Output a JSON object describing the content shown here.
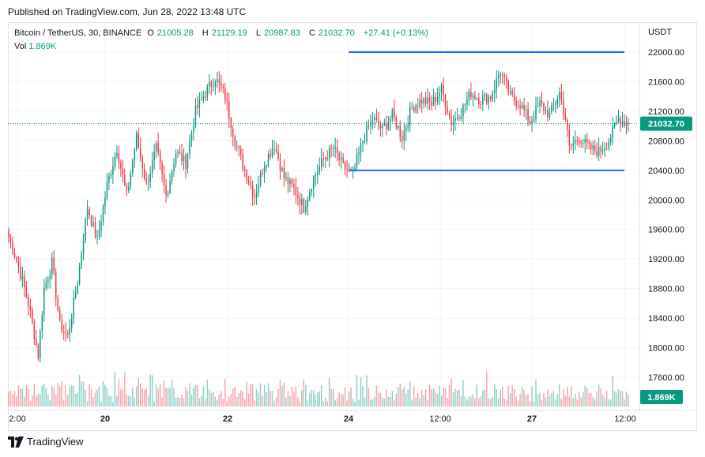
{
  "header": {
    "published": "Published on TradingView.com, Jun 28, 2022 13:48 UTC"
  },
  "legend": {
    "symbol": "Bitcoin / TetherUS, 30, BINANCE",
    "o_label": "O",
    "o_value": "21005.28",
    "h_label": "H",
    "h_value": "21129.19",
    "l_label": "L",
    "l_value": "20987.83",
    "c_label": "C",
    "c_value": "21032.70",
    "change": "+27.41 (+0.13%)",
    "vol_label": "Vol",
    "vol_value": "1.869K"
  },
  "footer": {
    "brand": "TradingView"
  },
  "colors": {
    "up": "#089981",
    "down": "#f23645",
    "level": "#2962ff",
    "last": "#089981"
  },
  "chart_data": {
    "type": "candlestick",
    "currency": "USDT",
    "y_ticks": [
      "22000.00",
      "21600.00",
      "21200.00",
      "20800.00",
      "20400.00",
      "20000.00",
      "19600.00",
      "19200.00",
      "18800.00",
      "18400.00",
      "18000.00",
      "17600.00"
    ],
    "x_ticks": [
      "2:00",
      "20",
      "22",
      "24",
      "12:00",
      "27",
      "12:00"
    ],
    "ylim": [
      17300,
      22450
    ],
    "last_price": 21032.7,
    "last_price_label": "21032.70",
    "volume_label": "1.869K",
    "horizontal_levels": [
      22000,
      20400
    ],
    "waypoints": [
      [
        0,
        19500
      ],
      [
        5,
        19100
      ],
      [
        10,
        18600
      ],
      [
        15,
        17900
      ],
      [
        18,
        18800
      ],
      [
        22,
        19150
      ],
      [
        26,
        18300
      ],
      [
        30,
        18150
      ],
      [
        35,
        18900
      ],
      [
        40,
        19900
      ],
      [
        45,
        19450
      ],
      [
        50,
        20200
      ],
      [
        55,
        20700
      ],
      [
        60,
        20050
      ],
      [
        65,
        20850
      ],
      [
        70,
        20200
      ],
      [
        75,
        20700
      ],
      [
        80,
        20050
      ],
      [
        85,
        20650
      ],
      [
        90,
        20500
      ],
      [
        95,
        21200
      ],
      [
        100,
        21450
      ],
      [
        105,
        21650
      ],
      [
        110,
        21400
      ],
      [
        115,
        20800
      ],
      [
        120,
        20400
      ],
      [
        125,
        20050
      ],
      [
        130,
        20500
      ],
      [
        135,
        20750
      ],
      [
        140,
        20300
      ],
      [
        145,
        20150
      ],
      [
        150,
        19900
      ],
      [
        155,
        20300
      ],
      [
        160,
        20550
      ],
      [
        165,
        20700
      ],
      [
        170,
        20450
      ],
      [
        175,
        20350
      ],
      [
        180,
        20800
      ],
      [
        185,
        21100
      ],
      [
        190,
        20950
      ],
      [
        195,
        21150
      ],
      [
        200,
        20850
      ],
      [
        205,
        21250
      ],
      [
        210,
        21350
      ],
      [
        215,
        21300
      ],
      [
        220,
        21500
      ],
      [
        225,
        21050
      ],
      [
        230,
        21200
      ],
      [
        235,
        21450
      ],
      [
        240,
        21350
      ],
      [
        245,
        21400
      ],
      [
        250,
        21750
      ],
      [
        255,
        21400
      ],
      [
        260,
        21300
      ],
      [
        265,
        21050
      ],
      [
        270,
        21300
      ],
      [
        275,
        21150
      ],
      [
        280,
        21450
      ],
      [
        283,
        21100
      ],
      [
        285,
        20700
      ],
      [
        290,
        20850
      ],
      [
        295,
        20700
      ],
      [
        300,
        20650
      ],
      [
        305,
        20800
      ],
      [
        310,
        21100
      ],
      [
        315,
        21032
      ]
    ]
  }
}
